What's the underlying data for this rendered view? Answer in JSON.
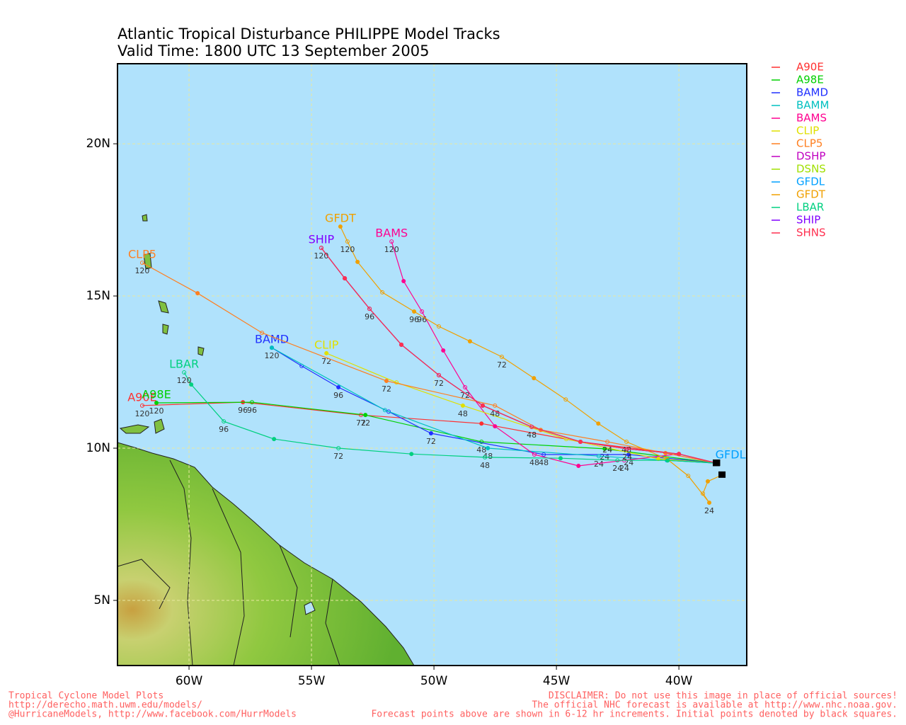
{
  "chart_data": {
    "type": "track-map",
    "title": "Atlantic Tropical Disturbance PHILIPPE Model Tracks",
    "subtitle": "Valid Time: 1800 UTC 13 September 2005",
    "xlim": [
      -62.92,
      -37.23
    ],
    "ylim": [
      2.86,
      22.63
    ],
    "xticks": [
      {
        "value": -60,
        "label": "60W"
      },
      {
        "value": -55,
        "label": "55W"
      },
      {
        "value": -50,
        "label": "50W"
      },
      {
        "value": -45,
        "label": "45W"
      },
      {
        "value": -40,
        "label": "40W"
      }
    ],
    "yticks": [
      {
        "value": 5,
        "label": "5N"
      },
      {
        "value": 10,
        "label": "10N"
      },
      {
        "value": 15,
        "label": "15N"
      },
      {
        "value": 20,
        "label": "20N"
      }
    ],
    "grid": true,
    "series": [
      {
        "name": "A90E",
        "color": "#ff3030",
        "name_label": "end",
        "lon": [
          -38.47,
          -40.0,
          -44.02,
          -48.06,
          -52.98,
          -57.8,
          -61.91
        ],
        "lat": [
          9.51,
          9.81,
          10.21,
          10.81,
          11.09,
          11.51,
          11.4
        ],
        "hour_labels": [
          null,
          null,
          null,
          null,
          "72",
          "96",
          "120"
        ]
      },
      {
        "name": "A98E",
        "color": "#00d000",
        "name_label": "end",
        "lon": [
          -38.47,
          -43.03,
          -48.06,
          -52.8,
          -57.43,
          -61.33
        ],
        "lat": [
          9.51,
          9.98,
          10.21,
          11.09,
          11.51,
          11.49
        ],
        "hour_labels": [
          null,
          "24",
          "48",
          "72",
          "96",
          "120"
        ]
      },
      {
        "name": "BAMD",
        "color": "#2030ff",
        "name_label": "end",
        "lon": [
          -38.47,
          -42.05,
          -45.52,
          -50.12,
          -51.85,
          -53.9,
          -55.4,
          -56.62
        ],
        "lat": [
          9.51,
          9.79,
          9.79,
          10.49,
          11.2,
          12.0,
          12.7,
          13.3
        ],
        "hour_labels": [
          null,
          "24",
          "48",
          "72",
          null,
          "96",
          null,
          "120"
        ]
      },
      {
        "name": "BAMM",
        "color": "#00c0c0",
        "name_label": null,
        "lon": [
          -38.47,
          -40.46,
          -43.27,
          -47.8,
          -52.0,
          -56.62
        ],
        "lat": [
          9.51,
          9.6,
          9.74,
          10.0,
          11.25,
          13.3
        ],
        "hour_labels": [
          null,
          null,
          "24",
          "48",
          null,
          null
        ]
      },
      {
        "name": "BAMS",
        "color": "#ff0090",
        "name_label": "end",
        "lon": [
          -38.47,
          -40.0,
          -42.23,
          -44.1,
          -45.9,
          -47.51,
          -48.73,
          -49.62,
          -50.49,
          -51.24,
          -51.73
        ],
        "lat": [
          9.51,
          9.81,
          9.6,
          9.42,
          9.79,
          10.72,
          12.0,
          13.21,
          14.49,
          15.49,
          16.79
        ],
        "hour_labels": [
          null,
          null,
          "24",
          null,
          "48",
          null,
          "72",
          null,
          "96",
          null,
          "120"
        ]
      },
      {
        "name": "CLIP",
        "color": "#e0e000",
        "name_label": "end",
        "lon": [
          -38.47,
          -40.84,
          -44.6,
          -48.82,
          -51.53,
          -54.39
        ],
        "lat": [
          9.51,
          9.65,
          10.3,
          11.4,
          12.16,
          13.12
        ],
        "hour_labels": [
          null,
          null,
          null,
          "48",
          null,
          "72"
        ]
      },
      {
        "name": "CLP5",
        "color": "#ff7f20",
        "name_label": "end",
        "lon": [
          -38.47,
          -40.55,
          -42.92,
          -45.64,
          -47.51,
          -51.94,
          -57.02,
          -59.65,
          -61.91
        ],
        "lat": [
          9.51,
          9.84,
          10.21,
          10.6,
          11.4,
          12.21,
          13.79,
          15.09,
          16.09
        ],
        "hour_labels": [
          null,
          null,
          "24",
          null,
          "48",
          "72",
          null,
          null,
          "120"
        ]
      },
      {
        "name": "DSHP",
        "color": "#c000c0",
        "name_label": null,
        "lon": [
          -38.47,
          -40.0,
          -42.11,
          -44.02,
          -46.01,
          -48.01,
          -49.8,
          -51.33,
          -52.63,
          -53.64,
          -54.6
        ],
        "lat": [
          9.51,
          9.81,
          9.98,
          10.21,
          10.7,
          11.4,
          12.4,
          13.4,
          14.58,
          15.58,
          16.58
        ],
        "hour_labels": [
          null,
          null,
          null,
          null,
          null,
          null,
          null,
          null,
          null,
          null,
          null
        ]
      },
      {
        "name": "DSNS",
        "color": "#a0e000",
        "name_label": null,
        "lon": [
          -38.47,
          -40.0,
          -42.11,
          -44.02,
          -46.01,
          -48.01,
          -49.8,
          -51.33,
          -52.63,
          -53.64,
          -54.6
        ],
        "lat": [
          9.51,
          9.81,
          9.98,
          10.21,
          10.7,
          11.4,
          12.4,
          13.4,
          14.58,
          15.58,
          16.58
        ],
        "hour_labels": [
          null,
          null,
          null,
          null,
          null,
          null,
          null,
          null,
          null,
          null,
          null
        ]
      },
      {
        "name": "GFDL",
        "color": "#00a0ff",
        "name_label": "start",
        "lon": [
          -38.47,
          -40.49
        ],
        "lat": [
          9.51,
          9.6
        ],
        "hour_labels": [
          null,
          null
        ]
      },
      {
        "name": "GFDT",
        "color": "#f0a000",
        "name_label": "end",
        "lon": [
          -38.24,
          -38.82,
          -39.02,
          -38.76,
          -39.62,
          -40.49,
          -42.14,
          -43.29,
          -44.62,
          -45.92,
          -47.23,
          -48.53,
          -49.8,
          -50.81,
          -52.11,
          -53.12,
          -53.53,
          -53.82
        ],
        "lat": [
          9.12,
          8.91,
          8.51,
          8.21,
          9.09,
          9.65,
          10.21,
          10.81,
          11.6,
          12.3,
          13.0,
          13.51,
          14.0,
          14.49,
          15.12,
          16.12,
          16.79,
          17.28
        ],
        "hour_labels": [
          null,
          null,
          null,
          "24",
          null,
          null,
          "48",
          null,
          null,
          null,
          "72",
          null,
          null,
          "96",
          null,
          null,
          "120",
          null
        ]
      },
      {
        "name": "LBAR",
        "color": "#00d080",
        "name_label": "end",
        "lon": [
          -38.47,
          -40.46,
          -42.51,
          -44.83,
          -47.92,
          -50.92,
          -53.9,
          -56.53,
          -58.58,
          -59.91,
          -60.2
        ],
        "lat": [
          9.51,
          9.6,
          9.6,
          9.67,
          9.7,
          9.81,
          10.0,
          10.3,
          10.88,
          12.09,
          12.49
        ],
        "hour_labels": [
          null,
          null,
          "24",
          null,
          "48",
          null,
          "72",
          null,
          "96",
          null,
          "120"
        ]
      },
      {
        "name": "SHIP",
        "color": "#8000ff",
        "name_label": "end",
        "lon": [
          -38.47,
          -40.0,
          -42.11,
          -44.02,
          -46.01,
          -48.01,
          -49.8,
          -51.33,
          -52.63,
          -53.64,
          -54.6
        ],
        "lat": [
          9.51,
          9.81,
          9.98,
          10.21,
          10.7,
          11.4,
          12.4,
          13.4,
          14.58,
          15.58,
          16.58
        ],
        "hour_labels": [
          null,
          null,
          "24",
          null,
          "48",
          null,
          "72",
          null,
          "96",
          null,
          "120"
        ]
      },
      {
        "name": "SHNS",
        "color": "#ff3050",
        "name_label": null,
        "lon": [
          -38.47,
          -40.0,
          -42.11,
          -44.02,
          -46.01,
          -48.01,
          -49.8,
          -51.33,
          -52.63,
          -53.64,
          -54.6
        ],
        "lat": [
          9.51,
          9.81,
          9.98,
          10.21,
          10.7,
          11.4,
          12.4,
          13.4,
          14.58,
          15.58,
          16.58
        ],
        "hour_labels": [
          null,
          null,
          null,
          null,
          null,
          null,
          null,
          null,
          null,
          null,
          null
        ]
      }
    ],
    "footer_left": [
      "Tropical Cyclone Model Plots",
      "http://derecho.math.uwm.edu/models/",
      "@HurricaneModels, http://www.facebook.com/HurrModels"
    ],
    "footer_right": [
      "DISCLAIMER: Do not use this image in place of official sources!",
      "The official NHC forecast is available at http://www.nhc.noaa.gov.",
      "Forecast points above are shown in 6-12 hr increments. Initial points denoted by black squares."
    ]
  }
}
